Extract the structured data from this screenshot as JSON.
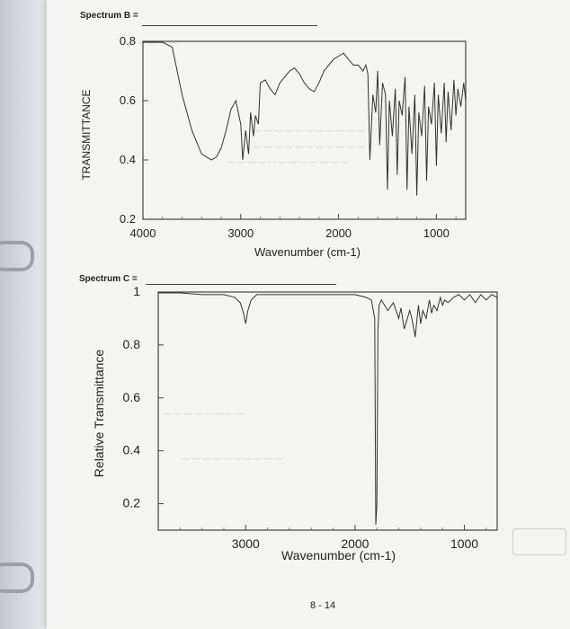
{
  "spectrum_b": {
    "label": "Spectrum B =",
    "chart_data": {
      "type": "line",
      "title": "",
      "xlabel": "Wavenumber (cm-1)",
      "ylabel": "TRANSMITTANCE",
      "xlim": [
        4000,
        700
      ],
      "ylim": [
        0.2,
        0.8
      ],
      "x_ticks": [
        4000,
        3000,
        2000,
        1000
      ],
      "y_ticks": [
        0.8,
        0.6,
        0.4,
        0.2
      ],
      "grid": false,
      "series": [
        {
          "x": [
            4000,
            3800,
            3700,
            3600,
            3500,
            3450,
            3400,
            3350,
            3300,
            3250,
            3200,
            3150,
            3100,
            3050,
            3000,
            2980,
            2950,
            2920,
            2900,
            2870,
            2850,
            2820,
            2800,
            2750,
            2700,
            2650,
            2600,
            2550,
            2500,
            2450,
            2400,
            2350,
            2300,
            2250,
            2200,
            2150,
            2100,
            2050,
            2000,
            1950,
            1900,
            1850,
            1800,
            1750,
            1720,
            1700,
            1680,
            1650,
            1620,
            1600,
            1580,
            1550,
            1520,
            1500,
            1480,
            1450,
            1420,
            1400,
            1380,
            1350,
            1320,
            1300,
            1280,
            1250,
            1220,
            1200,
            1180,
            1150,
            1120,
            1100,
            1080,
            1050,
            1020,
            1000,
            980,
            950,
            920,
            900,
            880,
            850,
            820,
            800,
            780,
            750,
            720,
            700
          ],
          "y": [
            0.88,
            0.86,
            0.78,
            0.62,
            0.5,
            0.46,
            0.42,
            0.41,
            0.4,
            0.41,
            0.44,
            0.5,
            0.57,
            0.6,
            0.52,
            0.4,
            0.5,
            0.42,
            0.56,
            0.48,
            0.55,
            0.52,
            0.66,
            0.67,
            0.64,
            0.62,
            0.66,
            0.68,
            0.7,
            0.71,
            0.69,
            0.66,
            0.64,
            0.63,
            0.66,
            0.7,
            0.72,
            0.74,
            0.75,
            0.76,
            0.74,
            0.72,
            0.72,
            0.7,
            0.72,
            0.69,
            0.4,
            0.62,
            0.56,
            0.7,
            0.45,
            0.66,
            0.62,
            0.3,
            0.6,
            0.48,
            0.64,
            0.35,
            0.6,
            0.55,
            0.68,
            0.3,
            0.58,
            0.42,
            0.62,
            0.28,
            0.56,
            0.48,
            0.65,
            0.33,
            0.58,
            0.52,
            0.66,
            0.38,
            0.62,
            0.49,
            0.66,
            0.46,
            0.63,
            0.5,
            0.67,
            0.55,
            0.64,
            0.58,
            0.66,
            0.6
          ]
        }
      ]
    }
  },
  "spectrum_c": {
    "label": "Spectrum C =",
    "chart_data": {
      "type": "line",
      "title": "",
      "xlabel": "Wavenumber (cm-1)",
      "ylabel": "Relative Transmittance",
      "xlim": [
        3800,
        700
      ],
      "ylim": [
        0.1,
        1.0
      ],
      "x_ticks": [
        3000,
        2000,
        1000
      ],
      "y_ticks": [
        "1",
        "0.8",
        "0.6",
        "0.4",
        "0.2"
      ],
      "y_tick_values": [
        1.0,
        0.8,
        0.6,
        0.4,
        0.2
      ],
      "grid": false,
      "series": [
        {
          "x": [
            3800,
            3600,
            3400,
            3200,
            3100,
            3050,
            3020,
            3000,
            2980,
            2950,
            2900,
            2800,
            2600,
            2400,
            2200,
            2000,
            1900,
            1850,
            1820,
            1810,
            1800,
            1790,
            1780,
            1760,
            1700,
            1650,
            1600,
            1580,
            1550,
            1500,
            1480,
            1450,
            1420,
            1400,
            1380,
            1350,
            1320,
            1300,
            1280,
            1250,
            1220,
            1200,
            1180,
            1150,
            1100,
            1050,
            1000,
            950,
            900,
            850,
            800,
            750,
            700
          ],
          "y": [
            1.0,
            1.0,
            0.99,
            0.99,
            0.98,
            0.96,
            0.92,
            0.88,
            0.93,
            0.97,
            0.99,
            0.99,
            0.99,
            0.99,
            0.99,
            0.99,
            0.98,
            0.97,
            0.9,
            0.12,
            0.2,
            0.86,
            0.95,
            0.97,
            0.93,
            0.96,
            0.9,
            0.94,
            0.86,
            0.93,
            0.9,
            0.83,
            0.95,
            0.88,
            0.93,
            0.9,
            0.97,
            0.92,
            0.95,
            0.93,
            0.98,
            0.95,
            0.97,
            0.96,
            0.98,
            0.99,
            0.97,
            0.99,
            0.96,
            0.99,
            0.97,
            0.99,
            0.98
          ]
        }
      ]
    }
  },
  "page_number": "8 - 14"
}
